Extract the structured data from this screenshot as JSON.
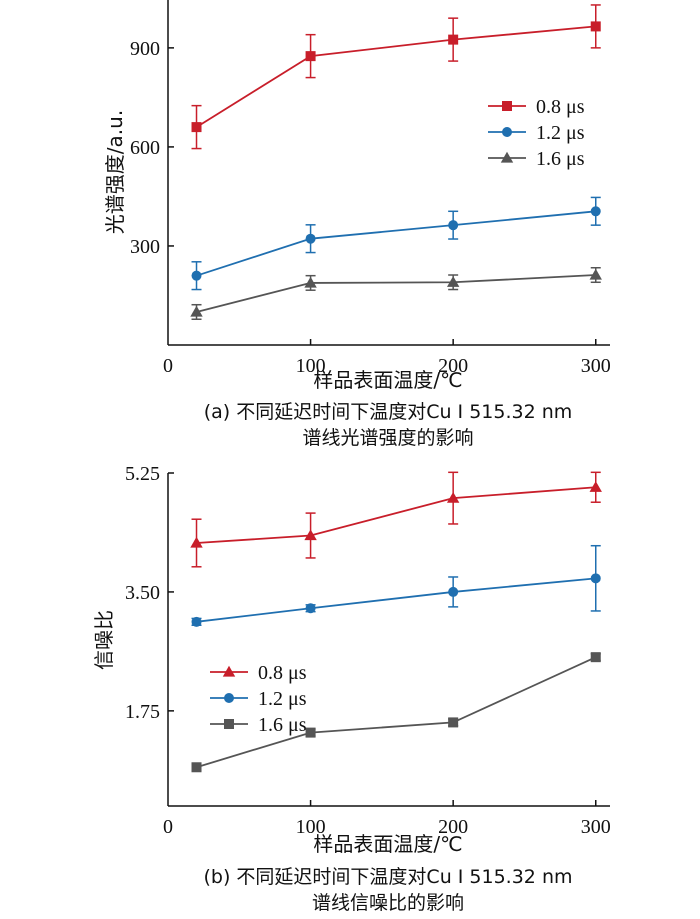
{
  "colors": {
    "s08": "#c81e2a",
    "s12": "#1f6fb0",
    "s16": "#555555"
  },
  "chart_data": [
    {
      "type": "line",
      "xlabel": "样品表面温度/℃",
      "ylabel": "光谱强度/a.u.",
      "caption_line1": "(a)  不同延迟时间下温度对Cu Ⅰ 515.32 nm",
      "caption_line2": "谱线光谱强度的影响",
      "xlim": [
        0,
        310
      ],
      "ylim": [
        0,
        1045
      ],
      "xticks": [
        0,
        100,
        200,
        300
      ],
      "xtick_labels": [
        "0",
        "100",
        "200",
        "300"
      ],
      "yticks": [
        300,
        600,
        900
      ],
      "ytick_labels": [
        "300",
        "600",
        "900"
      ],
      "legend_position": "right-middle",
      "x": [
        20,
        100,
        200,
        300
      ],
      "series": [
        {
          "name": "0.8 μs",
          "marker": "square",
          "color_key": "s08",
          "values": [
            660,
            875,
            925,
            965
          ],
          "errors": [
            65,
            65,
            65,
            65
          ]
        },
        {
          "name": "1.2 μs",
          "marker": "circle",
          "color_key": "s12",
          "values": [
            210,
            322,
            363,
            405
          ],
          "errors": [
            42,
            42,
            42,
            42
          ]
        },
        {
          "name": "1.6 μs",
          "marker": "triangle",
          "color_key": "s16",
          "values": [
            100,
            188,
            190,
            212
          ],
          "errors": [
            22,
            22,
            22,
            22
          ]
        }
      ]
    },
    {
      "type": "line",
      "xlabel": "样品表面温度/℃",
      "ylabel": "信噪比",
      "caption_line1": "(b)  不同延迟时间下温度对Cu Ⅰ 515.32 nm",
      "caption_line2": "谱线信噪比的影响",
      "xlim": [
        0,
        310
      ],
      "ylim": [
        0.35,
        5.25
      ],
      "xticks": [
        0,
        100,
        200,
        300
      ],
      "xtick_labels": [
        "0",
        "100",
        "200",
        "300"
      ],
      "yticks": [
        1.75,
        3.5,
        5.25
      ],
      "ytick_labels": [
        "1.75",
        "3.50",
        "5.25"
      ],
      "legend_position": "left-middle",
      "x": [
        20,
        100,
        200,
        300
      ],
      "series": [
        {
          "name": "0.8 μs",
          "marker": "triangle",
          "color_key": "s08",
          "values": [
            4.22,
            4.33,
            4.88,
            5.04
          ],
          "errors": [
            0.35,
            0.33,
            0.38,
            0.22
          ]
        },
        {
          "name": "1.2 μs",
          "marker": "circle",
          "color_key": "s12",
          "values": [
            3.06,
            3.26,
            3.5,
            3.7
          ],
          "errors": [
            0.05,
            0.05,
            0.22,
            0.48
          ]
        },
        {
          "name": "1.6 μs",
          "marker": "square",
          "color_key": "s16",
          "values": [
            0.92,
            1.43,
            1.58,
            2.54
          ],
          "errors": [
            0.05,
            0.05,
            0.05,
            0.05
          ]
        }
      ]
    }
  ]
}
